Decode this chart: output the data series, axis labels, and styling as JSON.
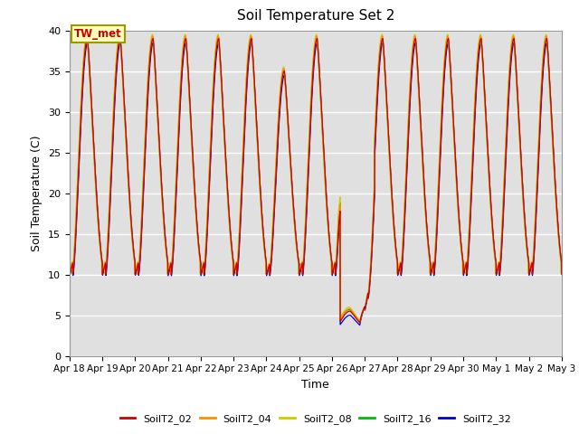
{
  "title": "Soil Temperature Set 2",
  "xlabel": "Time",
  "ylabel": "Soil Temperature (C)",
  "ylim": [
    0,
    40
  ],
  "yticks": [
    0,
    5,
    10,
    15,
    20,
    25,
    30,
    35,
    40
  ],
  "series_names": [
    "SoilT2_02",
    "SoilT2_04",
    "SoilT2_08",
    "SoilT2_16",
    "SoilT2_32"
  ],
  "series_colors": [
    "#cc0000",
    "#ff8c00",
    "#cccc00",
    "#00bb00",
    "#0000cc"
  ],
  "annotation_text": "TW_met",
  "annotation_color": "#cc0000",
  "annotation_bg": "#ffffbb",
  "annotation_border": "#999900",
  "background_color": "#e0e0e0",
  "grid_color": "#ffffff",
  "xtick_labels": [
    "Apr 18",
    "Apr 19",
    "Apr 20",
    "Apr 21",
    "Apr 22",
    "Apr 23",
    "Apr 24",
    "Apr 25",
    "Apr 26",
    "Apr 27",
    "Apr 28",
    "Apr 29",
    "Apr 30",
    "May 1",
    "May 2",
    "May 3"
  ],
  "num_points": 3600
}
